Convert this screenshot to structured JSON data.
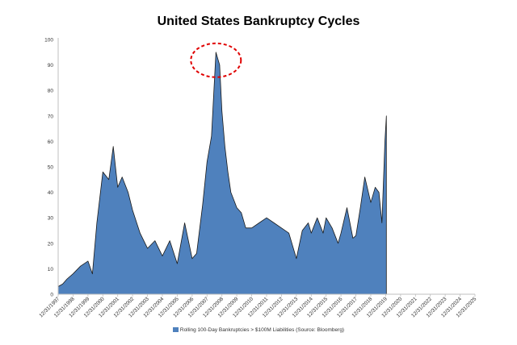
{
  "chart_data": {
    "type": "area",
    "title": "United States Bankruptcy Cycles",
    "series": [
      {
        "name": "Rolling 100-Day Bankruptcies > $100M Liabilities (Source: Bloomberg)",
        "x": [
          1998.0,
          1998.3,
          1998.6,
          1999.0,
          1999.5,
          2000.0,
          2000.3,
          2000.6,
          2001.0,
          2001.4,
          2001.7,
          2002.0,
          2002.3,
          2002.7,
          2003.0,
          2003.5,
          2004.0,
          2004.5,
          2005.0,
          2005.5,
          2006.0,
          2006.5,
          2007.0,
          2007.3,
          2007.7,
          2008.0,
          2008.3,
          2008.6,
          2008.85,
          2009.0,
          2009.2,
          2009.4,
          2009.6,
          2009.8,
          2010.0,
          2010.3,
          2010.6,
          2011.0,
          2011.5,
          2012.0,
          2012.5,
          2013.0,
          2013.5,
          2014.0,
          2014.4,
          2014.8,
          2015.0,
          2015.4,
          2015.8,
          2016.0,
          2016.4,
          2016.8,
          2017.0,
          2017.4,
          2017.8,
          2018.0,
          2018.3,
          2018.6,
          2019.0,
          2019.3,
          2019.55,
          2019.75,
          2019.95,
          2020.05
        ],
        "values": [
          3,
          4,
          6,
          8,
          11,
          13,
          8,
          28,
          48,
          45,
          58,
          42,
          46,
          40,
          33,
          24,
          18,
          21,
          15,
          21,
          12,
          28,
          14,
          16,
          35,
          52,
          62,
          95,
          90,
          72,
          58,
          48,
          40,
          37,
          34,
          32,
          26,
          26,
          28,
          30,
          28,
          26,
          24,
          14,
          25,
          28,
          24,
          30,
          24,
          30,
          26,
          20,
          24,
          34,
          22,
          23,
          34,
          46,
          36,
          42,
          40,
          28,
          60,
          70
        ]
      }
    ],
    "x_tick_labels": [
      "12/31/1997",
      "12/31/1998",
      "12/31/1999",
      "12/31/2000",
      "12/31/2001",
      "12/31/2002",
      "12/31/2003",
      "12/31/2004",
      "12/31/2005",
      "12/31/2006",
      "12/31/2007",
      "12/31/2008",
      "12/31/2009",
      "12/31/2010",
      "12/31/2011",
      "12/31/2012",
      "12/31/2013",
      "12/31/2014",
      "12/31/2015",
      "12/31/2016",
      "12/31/2017",
      "12/31/2018",
      "12/31/2019",
      "12/31/2020",
      "12/31/2021",
      "12/31/2022",
      "12/31/2023",
      "12/31/2024",
      "12/31/2025"
    ],
    "y_ticks": [
      0,
      10,
      20,
      30,
      40,
      50,
      60,
      70,
      80,
      90,
      100
    ],
    "xlim": [
      "12/31/1997",
      "12/31/2025"
    ],
    "ylim": [
      0,
      100
    ],
    "grid": false,
    "legend_position": "bottom",
    "annotation": "red dashed circle around the 2008 peak",
    "colors": {
      "area_fill": "#4f81bd",
      "area_edge": "#1a1a1a",
      "annotation": "#e00000",
      "axis": "#bfbfbf"
    }
  }
}
